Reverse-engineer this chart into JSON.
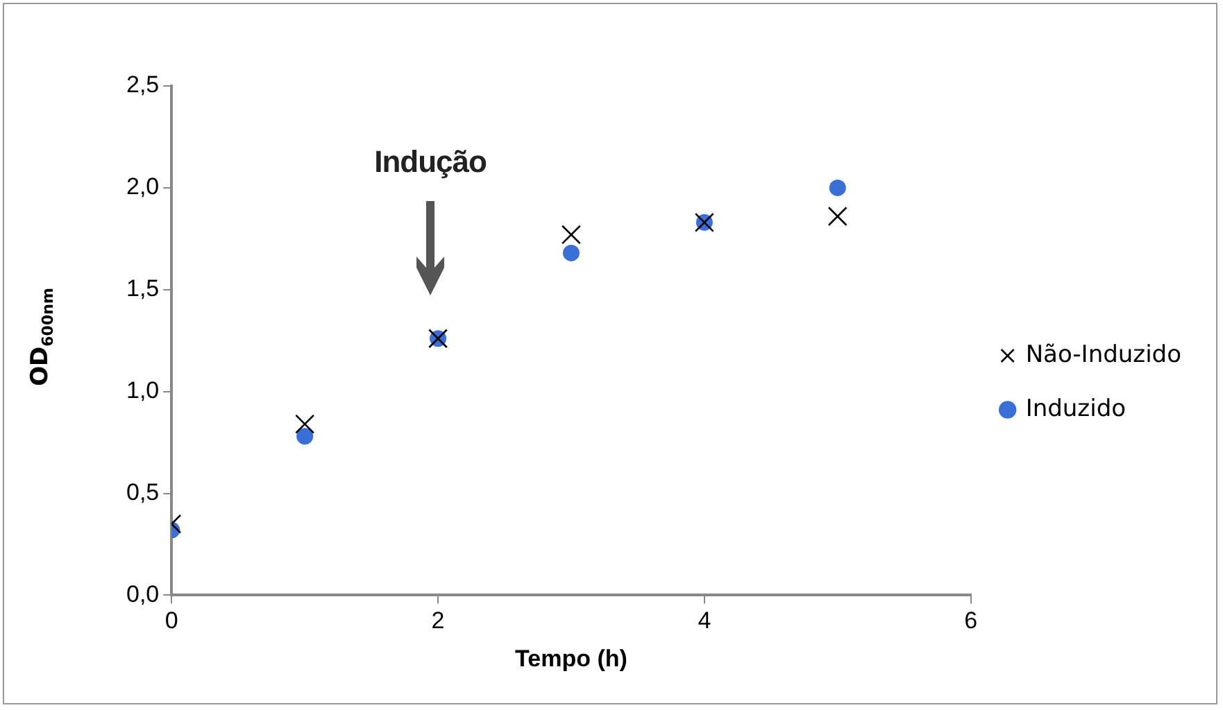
{
  "chart_data": {
    "type": "scatter",
    "xlabel": "Tempo (h)",
    "ylabel": "OD$_{600nm}$",
    "x": [
      0,
      1,
      2,
      3,
      4,
      5
    ],
    "series": [
      {
        "name": "Induzido",
        "color": "#3a6fd8",
        "marker": "circle",
        "values": [
          0.32,
          0.78,
          1.26,
          1.68,
          1.83,
          2.0
        ]
      },
      {
        "name": "Não-Induzido",
        "color": "#000000",
        "marker": "cross",
        "values": [
          0.35,
          0.84,
          1.26,
          1.77,
          1.83,
          1.86
        ]
      }
    ],
    "xlim": [
      0,
      6
    ],
    "xticks": [
      0,
      2,
      4,
      6
    ],
    "ylim": [
      0,
      2.5
    ],
    "yticks": [
      {
        "value": 0,
        "label": "0,0"
      },
      {
        "value": 0.5,
        "label": "0,5"
      },
      {
        "value": 1,
        "label": "1,0"
      },
      {
        "value": 1.5,
        "label": "1,5"
      },
      {
        "value": 2,
        "label": "2,0"
      },
      {
        "value": 2.5,
        "label": "2,5"
      }
    ],
    "grid": false,
    "legend": "right",
    "annotations": [
      "Indução"
    ]
  }
}
